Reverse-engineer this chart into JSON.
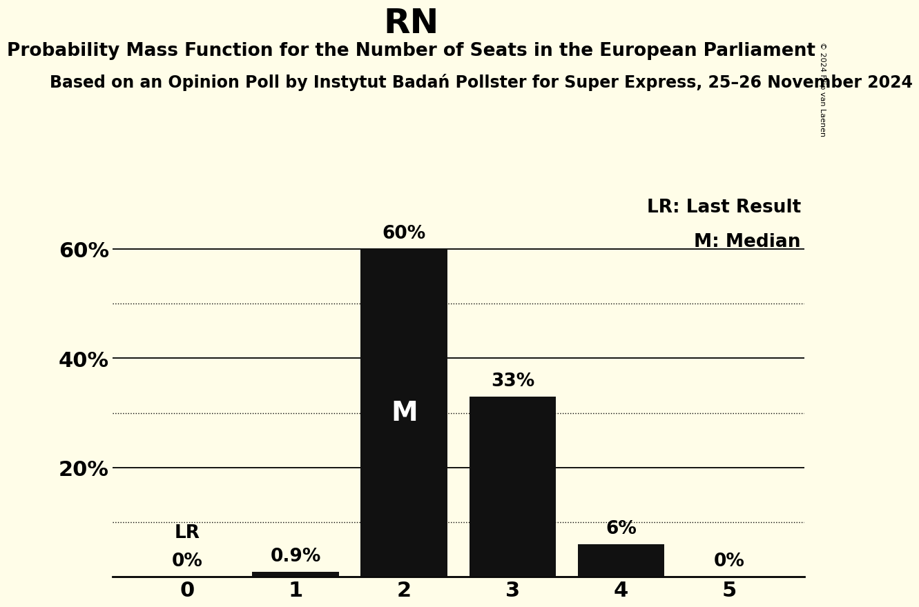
{
  "title": "RN",
  "subtitle": "Probability Mass Function for the Number of Seats in the European Parliament",
  "source_line": "Based on an Opinion Poll by Instytut Badań Pollster for Super Express, 25–26 November 2024",
  "copyright": "© 2024 Filip van Laenen",
  "categories": [
    0,
    1,
    2,
    3,
    4,
    5
  ],
  "values": [
    0.0,
    0.9,
    60.0,
    33.0,
    6.0,
    0.0
  ],
  "bar_color": "#111111",
  "background_color": "#FFFDE8",
  "bar_labels": [
    "0%",
    "0.9%",
    "60%",
    "33%",
    "6%",
    "0%"
  ],
  "median_bar": 2,
  "last_result_bar": 0,
  "ylim": [
    0,
    70
  ],
  "yticks": [
    20,
    40,
    60
  ],
  "ytick_labels": [
    "20%",
    "40%",
    "60%"
  ],
  "solid_hlines": [
    20,
    40,
    60
  ],
  "dotted_hlines": [
    10,
    30,
    50
  ],
  "legend_lr": "LR: Last Result",
  "legend_m": "M: Median",
  "lr_label": "LR",
  "median_label": "M",
  "title_fontsize": 36,
  "subtitle_fontsize": 19,
  "source_fontsize": 17,
  "bar_label_fontsize": 19,
  "axis_tick_fontsize": 22,
  "legend_fontsize": 19,
  "median_label_fontsize": 28
}
